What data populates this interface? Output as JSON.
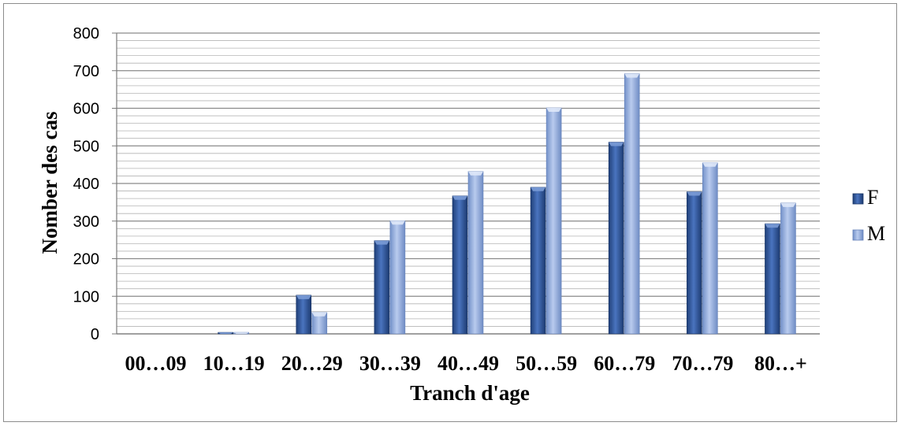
{
  "chart_data": {
    "type": "bar",
    "title": "",
    "xlabel": "Tranch d'age",
    "ylabel": "Nomber des cas",
    "categories": [
      "00…09",
      "10…19",
      "20…29",
      "30…39",
      "40…49",
      "50…59",
      "60…79",
      "70…79",
      "80…+"
    ],
    "series": [
      {
        "name": "F",
        "values": [
          0,
          4,
          103,
          248,
          367,
          390,
          510,
          378,
          293
        ],
        "color": "#2e5597"
      },
      {
        "name": "M",
        "values": [
          0,
          4,
          57,
          301,
          432,
          601,
          692,
          455,
          348
        ],
        "color": "#8fa8d8"
      }
    ],
    "ylim": [
      0,
      800
    ],
    "y_ticks": [
      0,
      100,
      200,
      300,
      400,
      500,
      600,
      700,
      800
    ],
    "y_minor_step": 20,
    "grid": true,
    "legend_position": "right"
  }
}
